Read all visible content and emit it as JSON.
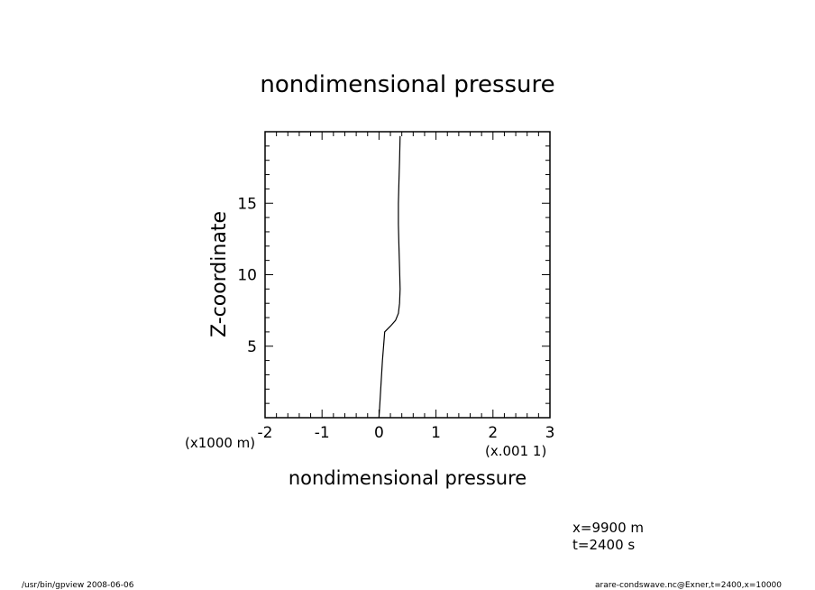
{
  "chart_data": {
    "type": "line",
    "title": "nondimensional pressure",
    "xlabel": "nondimensional pressure",
    "ylabel": "Z-coordinate",
    "x_scale_label": "(x.001 1)",
    "y_scale_label": "(x1000 m)",
    "xlim": [
      -2,
      3
    ],
    "ylim": [
      0,
      20
    ],
    "xticks": [
      "-2",
      "-1",
      "0",
      "1",
      "2",
      "3"
    ],
    "yticks": [
      "5",
      "10",
      "15"
    ],
    "grid": false,
    "series": [
      {
        "x": [
          0.0,
          0.03,
          0.06,
          0.09,
          0.1,
          0.2,
          0.29,
          0.34,
          0.36,
          0.37,
          0.36,
          0.35,
          0.34,
          0.34,
          0.35,
          0.36,
          0.37
        ],
        "y": [
          0.0,
          2.0,
          4.0,
          5.5,
          6.0,
          6.4,
          6.8,
          7.3,
          8.0,
          9.0,
          10.5,
          12.0,
          13.5,
          15.0,
          16.5,
          18.0,
          19.7
        ]
      }
    ]
  },
  "annotations": {
    "position_x": "x=9900 m",
    "time": "t=2400 s",
    "program": "/usr/bin/gpview   2008-06-06",
    "source": "arare-condswave.nc@Exner,t=2400,x=10000"
  }
}
